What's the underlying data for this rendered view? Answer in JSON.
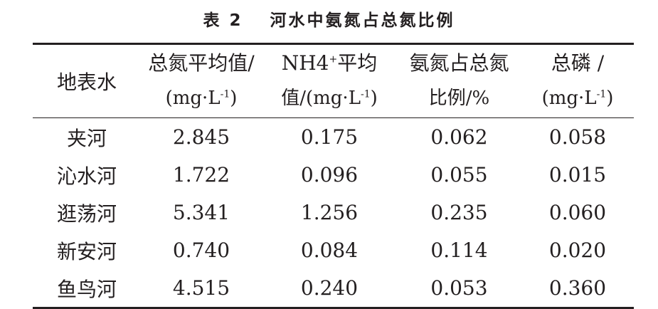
{
  "caption": {
    "number": "表 2",
    "title": "河水中氨氮占总氮比例"
  },
  "table": {
    "header_row_label": "地表水",
    "columns": [
      {
        "line1": "总氮平均值/",
        "line2": "(mg·L",
        "line2_sup": "-1",
        "line2_tail": ")"
      },
      {
        "line1_pre": "NH4",
        "line1_sup": "+",
        "line1": "平均",
        "line2": "值/(mg·L",
        "line2_sup": "-1",
        "line2_tail": ")"
      },
      {
        "line1": "氨氮占总氮",
        "line2": "比例/%"
      },
      {
        "line1": "总磷 /",
        "line2": "(mg·L",
        "line2_sup": "-1",
        "line2_tail": ")"
      }
    ],
    "rows": [
      {
        "name": "夹河",
        "values": [
          "2.845",
          "0.175",
          "0.062",
          "0.058"
        ]
      },
      {
        "name": "沁水河",
        "values": [
          "1.722",
          "0.096",
          "0.055",
          "0.015"
        ]
      },
      {
        "name": "逛荡河",
        "values": [
          "5.341",
          "1.256",
          "0.235",
          "0.060"
        ]
      },
      {
        "name": "新安河",
        "values": [
          "0.740",
          "0.084",
          "0.114",
          "0.020"
        ]
      },
      {
        "name": "鱼鸟河",
        "values": [
          "4.515",
          "0.240",
          "0.053",
          "0.360"
        ]
      }
    ]
  }
}
